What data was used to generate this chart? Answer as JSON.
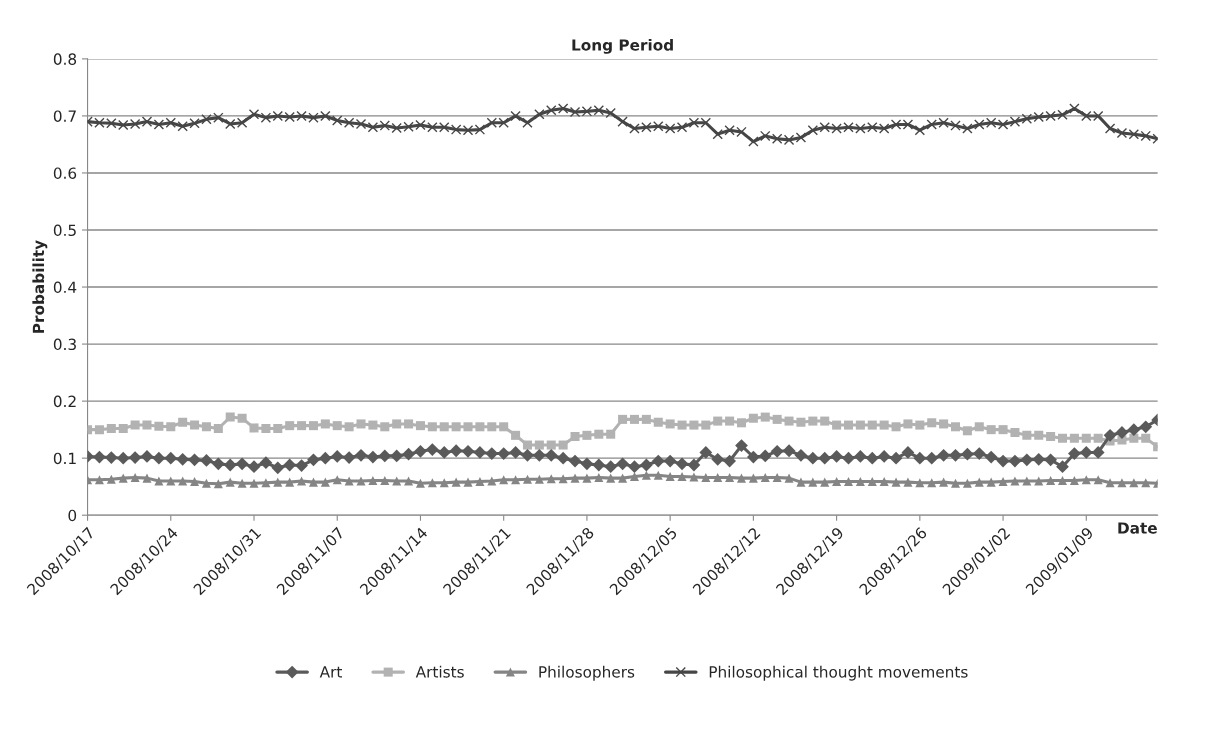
{
  "chart_data": {
    "type": "line",
    "title": "Long Period",
    "xlabel": "Date",
    "ylabel": "Probability",
    "x": [
      "2008-10-17",
      "2008-10-18",
      "2008-10-19",
      "2008-10-20",
      "2008-10-21",
      "2008-10-22",
      "2008-10-23",
      "2008-10-24",
      "2008-10-25",
      "2008-10-26",
      "2008-10-27",
      "2008-10-28",
      "2008-10-29",
      "2008-10-30",
      "2008-10-31",
      "2008-11-01",
      "2008-11-02",
      "2008-11-03",
      "2008-11-04",
      "2008-11-05",
      "2008-11-06",
      "2008-11-07",
      "2008-11-08",
      "2008-11-09",
      "2008-11-10",
      "2008-11-11",
      "2008-11-12",
      "2008-11-13",
      "2008-11-14",
      "2008-11-15",
      "2008-11-16",
      "2008-11-17",
      "2008-11-18",
      "2008-11-19",
      "2008-11-20",
      "2008-11-21",
      "2008-11-22",
      "2008-11-23",
      "2008-11-24",
      "2008-11-25",
      "2008-11-26",
      "2008-11-27",
      "2008-11-28",
      "2008-11-29",
      "2008-11-30",
      "2008-12-01",
      "2008-12-02",
      "2008-12-03",
      "2008-12-04",
      "2008-12-05",
      "2008-12-06",
      "2008-12-07",
      "2008-12-08",
      "2008-12-09",
      "2008-12-10",
      "2008-12-11",
      "2008-12-12",
      "2008-12-13",
      "2008-12-14",
      "2008-12-15",
      "2008-12-16",
      "2008-12-17",
      "2008-12-18",
      "2008-12-19",
      "2008-12-20",
      "2008-12-21",
      "2008-12-22",
      "2008-12-23",
      "2008-12-24",
      "2008-12-25",
      "2008-12-26",
      "2008-12-27",
      "2008-12-28",
      "2008-12-29",
      "2008-12-30",
      "2008-12-31",
      "2009-01-01",
      "2009-01-02",
      "2009-01-03",
      "2009-01-04",
      "2009-01-05",
      "2009-01-06",
      "2009-01-07",
      "2009-01-08",
      "2009-01-09",
      "2009-01-10",
      "2009-01-11",
      "2009-01-12",
      "2009-01-13",
      "2009-01-14",
      "2009-01-15"
    ],
    "xlim": [
      "2008-10-17",
      "2009-01-15"
    ],
    "xticks": [
      {
        "value": "2008-10-17",
        "label": "2008/10/17"
      },
      {
        "value": "2008-10-24",
        "label": "2008/10/24"
      },
      {
        "value": "2008-10-31",
        "label": "2008/10/31"
      },
      {
        "value": "2008-11-07",
        "label": "2008/11/07"
      },
      {
        "value": "2008-11-14",
        "label": "2008/11/14"
      },
      {
        "value": "2008-11-21",
        "label": "2008/11/21"
      },
      {
        "value": "2008-11-28",
        "label": "2008/11/28"
      },
      {
        "value": "2008-12-05",
        "label": "2008/12/05"
      },
      {
        "value": "2008-12-12",
        "label": "2008/12/12"
      },
      {
        "value": "2008-12-19",
        "label": "2008/12/19"
      },
      {
        "value": "2008-12-26",
        "label": "2008/12/26"
      },
      {
        "value": "2009-01-02",
        "label": "2009/01/02"
      },
      {
        "value": "2009-01-09",
        "label": "2009/01/09"
      }
    ],
    "ylim": [
      0,
      0.8
    ],
    "yticks": [
      0,
      0.1,
      0.2,
      0.3,
      0.4,
      0.5,
      0.6,
      0.7,
      0.8
    ],
    "grid": "y",
    "legend": "bottom",
    "line_style": "solid",
    "series": [
      {
        "name": "Art",
        "color": "#5a5a5a",
        "marker": "diamond",
        "values": [
          0.103,
          0.102,
          0.101,
          0.1,
          0.101,
          0.103,
          0.1,
          0.1,
          0.098,
          0.097,
          0.096,
          0.09,
          0.088,
          0.09,
          0.085,
          0.092,
          0.083,
          0.088,
          0.087,
          0.097,
          0.1,
          0.103,
          0.101,
          0.105,
          0.102,
          0.104,
          0.104,
          0.107,
          0.112,
          0.115,
          0.11,
          0.113,
          0.112,
          0.11,
          0.108,
          0.108,
          0.11,
          0.105,
          0.105,
          0.105,
          0.1,
          0.095,
          0.09,
          0.088,
          0.085,
          0.09,
          0.085,
          0.088,
          0.095,
          0.095,
          0.09,
          0.088,
          0.11,
          0.098,
          0.095,
          0.122,
          0.102,
          0.104,
          0.112,
          0.113,
          0.105,
          0.1,
          0.1,
          0.103,
          0.1,
          0.103,
          0.1,
          0.103,
          0.1,
          0.11,
          0.1,
          0.1,
          0.105,
          0.105,
          0.107,
          0.108,
          0.102,
          0.095,
          0.095,
          0.097,
          0.098,
          0.097,
          0.085,
          0.108,
          0.11,
          0.11,
          0.14,
          0.145,
          0.15,
          0.155,
          0.167
        ]
      },
      {
        "name": "Artists",
        "color": "#b2b2b2",
        "marker": "square",
        "values": [
          0.15,
          0.15,
          0.152,
          0.152,
          0.158,
          0.158,
          0.156,
          0.155,
          0.163,
          0.158,
          0.155,
          0.152,
          0.172,
          0.17,
          0.153,
          0.152,
          0.152,
          0.157,
          0.157,
          0.157,
          0.16,
          0.157,
          0.155,
          0.16,
          0.158,
          0.155,
          0.16,
          0.16,
          0.157,
          0.155,
          0.155,
          0.155,
          0.155,
          0.155,
          0.155,
          0.155,
          0.14,
          0.123,
          0.123,
          0.123,
          0.123,
          0.138,
          0.14,
          0.142,
          0.142,
          0.168,
          0.168,
          0.168,
          0.163,
          0.16,
          0.158,
          0.158,
          0.158,
          0.165,
          0.165,
          0.162,
          0.17,
          0.172,
          0.168,
          0.165,
          0.163,
          0.165,
          0.165,
          0.158,
          0.158,
          0.158,
          0.158,
          0.158,
          0.155,
          0.16,
          0.158,
          0.162,
          0.16,
          0.155,
          0.148,
          0.155,
          0.15,
          0.15,
          0.145,
          0.14,
          0.14,
          0.138,
          0.135,
          0.135,
          0.135,
          0.135,
          0.13,
          0.132,
          0.135,
          0.135,
          0.12
        ]
      },
      {
        "name": "Philosophers",
        "color": "#858585",
        "marker": "triangle",
        "values": [
          0.062,
          0.062,
          0.063,
          0.065,
          0.066,
          0.065,
          0.06,
          0.06,
          0.06,
          0.059,
          0.056,
          0.055,
          0.058,
          0.056,
          0.056,
          0.057,
          0.058,
          0.058,
          0.06,
          0.058,
          0.058,
          0.062,
          0.06,
          0.06,
          0.061,
          0.061,
          0.06,
          0.06,
          0.056,
          0.057,
          0.057,
          0.058,
          0.058,
          0.059,
          0.06,
          0.062,
          0.062,
          0.063,
          0.063,
          0.064,
          0.064,
          0.065,
          0.065,
          0.066,
          0.065,
          0.065,
          0.068,
          0.07,
          0.07,
          0.068,
          0.068,
          0.067,
          0.066,
          0.066,
          0.066,
          0.065,
          0.065,
          0.066,
          0.066,
          0.065,
          0.058,
          0.058,
          0.058,
          0.059,
          0.059,
          0.059,
          0.059,
          0.059,
          0.058,
          0.058,
          0.057,
          0.057,
          0.058,
          0.056,
          0.056,
          0.058,
          0.058,
          0.059,
          0.06,
          0.06,
          0.06,
          0.061,
          0.061,
          0.061,
          0.062,
          0.062,
          0.057,
          0.057,
          0.057,
          0.057,
          0.056
        ]
      },
      {
        "name": "Philosophical thought movements",
        "color": "#464646",
        "marker": "cross",
        "values": [
          0.69,
          0.688,
          0.687,
          0.684,
          0.686,
          0.69,
          0.685,
          0.688,
          0.682,
          0.687,
          0.694,
          0.697,
          0.686,
          0.688,
          0.703,
          0.697,
          0.7,
          0.698,
          0.7,
          0.697,
          0.7,
          0.692,
          0.688,
          0.686,
          0.68,
          0.683,
          0.679,
          0.681,
          0.684,
          0.68,
          0.68,
          0.676,
          0.675,
          0.676,
          0.688,
          0.688,
          0.7,
          0.688,
          0.703,
          0.71,
          0.713,
          0.707,
          0.708,
          0.71,
          0.705,
          0.69,
          0.678,
          0.68,
          0.682,
          0.678,
          0.68,
          0.688,
          0.688,
          0.668,
          0.675,
          0.672,
          0.655,
          0.665,
          0.66,
          0.658,
          0.662,
          0.675,
          0.68,
          0.678,
          0.68,
          0.678,
          0.68,
          0.678,
          0.685,
          0.685,
          0.675,
          0.685,
          0.688,
          0.683,
          0.678,
          0.685,
          0.688,
          0.685,
          0.69,
          0.695,
          0.698,
          0.7,
          0.702,
          0.713,
          0.7,
          0.7,
          0.678,
          0.67,
          0.668,
          0.665,
          0.66
        ]
      }
    ]
  }
}
